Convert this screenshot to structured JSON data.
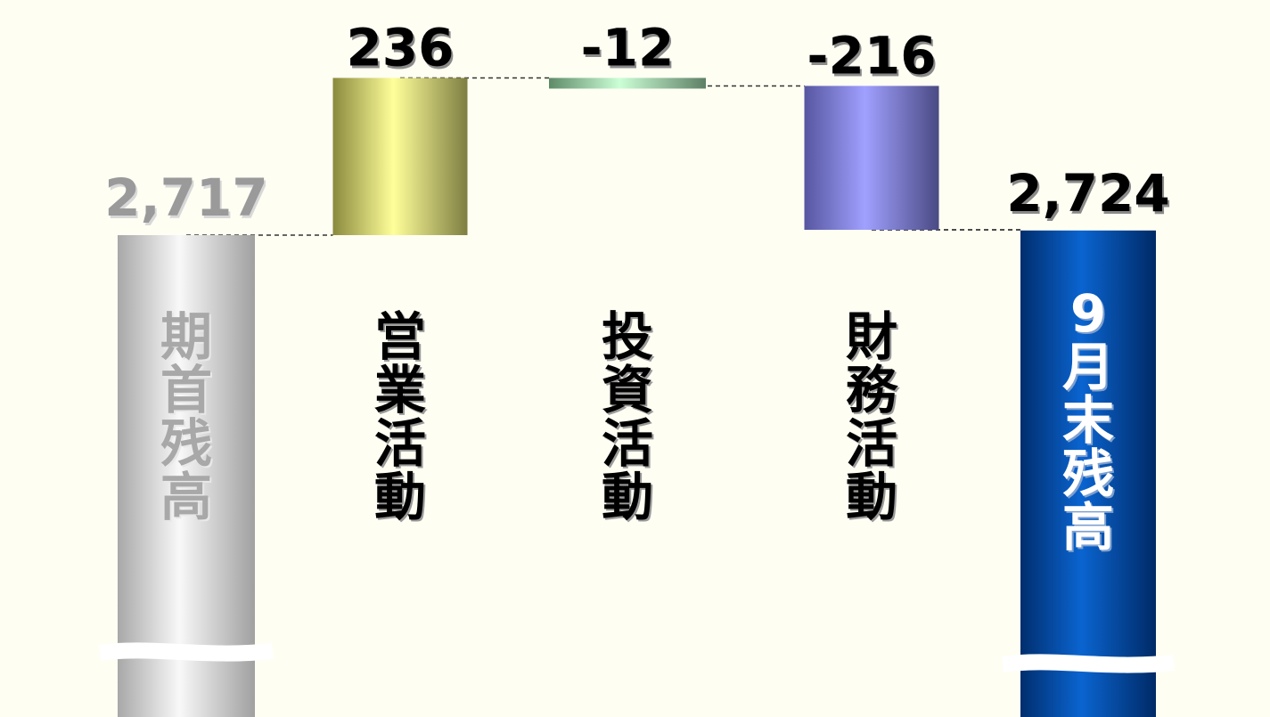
{
  "chart_data": {
    "type": "bar",
    "subtype": "waterfall",
    "categories": [
      "期首残高",
      "営業活動",
      "投資活動",
      "財務活動",
      "9月末残高"
    ],
    "values": [
      2717,
      236,
      -12,
      -216,
      2724
    ],
    "value_labels": [
      "2,717",
      "236",
      "-12",
      "-216",
      "2,724"
    ],
    "kinds": [
      "total",
      "delta",
      "delta",
      "delta",
      "total"
    ],
    "axis_break": true,
    "grid": false,
    "legend": "none",
    "colors": [
      "#c4c4c4",
      "#f2f29a",
      "#b6e8c0",
      "#9a9af0",
      "#0a56b8"
    ],
    "label_colors": [
      "#9a9a9a",
      "#000000",
      "#000000",
      "#000000",
      "#000000"
    ],
    "vertical_label_colors": [
      "#a8a8a8",
      "#000000",
      "#000000",
      "#000000",
      "#ffffff"
    ],
    "title": "",
    "xlabel": "",
    "ylabel": ""
  }
}
